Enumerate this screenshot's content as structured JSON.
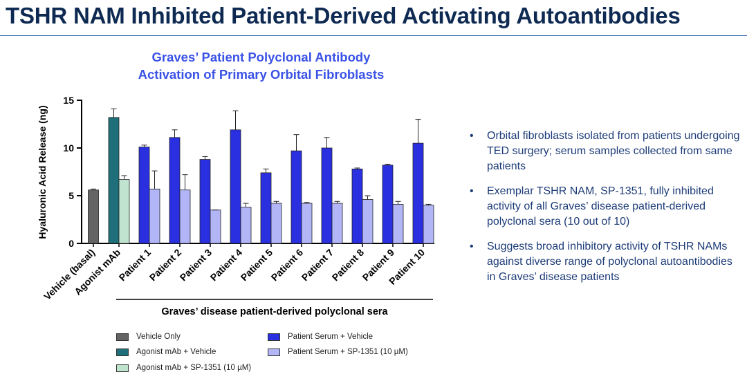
{
  "slide": {
    "title": "TSHR NAM Inhibited Patient-Derived Activating Autoantibodies"
  },
  "chart_data": {
    "type": "bar",
    "title_lines": [
      "Graves’ Patient Polyclonal Antibody",
      "Activation of Primary Orbital Fibroblasts"
    ],
    "ylabel": "Hyaluronic Acid Release (ng)",
    "xlabel": "Graves’ disease patient-derived polyclonal sera",
    "ylim": [
      0,
      15
    ],
    "yticks": [
      0,
      5,
      10,
      15
    ],
    "groups": [
      {
        "label": "Vehicle (basal)",
        "bars": [
          {
            "series": "Vehicle Only",
            "value": 5.6,
            "err": 0.1
          }
        ]
      },
      {
        "label": "Agonist mAb",
        "bars": [
          {
            "series": "Agonist mAb + Vehicle",
            "value": 13.2,
            "err": 0.9
          },
          {
            "series": "Agonist mAb + SP-1351 (10 µM)",
            "value": 6.7,
            "err": 0.4
          }
        ]
      },
      {
        "label": "Patient 1",
        "bars": [
          {
            "series": "Patient Serum + Vehicle",
            "value": 10.1,
            "err": 0.2
          },
          {
            "series": "Patient Serum + SP-1351 (10 µM)",
            "value": 5.7,
            "err": 1.9
          }
        ]
      },
      {
        "label": "Patient 2",
        "bars": [
          {
            "series": "Patient Serum + Vehicle",
            "value": 11.1,
            "err": 0.8
          },
          {
            "series": "Patient Serum + SP-1351 (10 µM)",
            "value": 5.6,
            "err": 1.6
          }
        ]
      },
      {
        "label": "Patient 3",
        "bars": [
          {
            "series": "Patient Serum + Vehicle",
            "value": 8.8,
            "err": 0.3
          },
          {
            "series": "Patient Serum + SP-1351 (10 µM)",
            "value": 3.5,
            "err": 0.0
          }
        ]
      },
      {
        "label": "Patient 4",
        "bars": [
          {
            "series": "Patient Serum + Vehicle",
            "value": 11.9,
            "err": 2.0
          },
          {
            "series": "Patient Serum + SP-1351 (10 µM)",
            "value": 3.8,
            "err": 0.4
          }
        ]
      },
      {
        "label": "Patient 5",
        "bars": [
          {
            "series": "Patient Serum + Vehicle",
            "value": 7.4,
            "err": 0.4
          },
          {
            "series": "Patient Serum + SP-1351 (10 µM)",
            "value": 4.2,
            "err": 0.2
          }
        ]
      },
      {
        "label": "Patient 6",
        "bars": [
          {
            "series": "Patient Serum + Vehicle",
            "value": 9.7,
            "err": 1.7
          },
          {
            "series": "Patient Serum + SP-1351 (10 µM)",
            "value": 4.2,
            "err": 0.1
          }
        ]
      },
      {
        "label": "Patient 7",
        "bars": [
          {
            "series": "Patient Serum + Vehicle",
            "value": 10.0,
            "err": 1.1
          },
          {
            "series": "Patient Serum + SP-1351 (10 µM)",
            "value": 4.2,
            "err": 0.2
          }
        ]
      },
      {
        "label": "Patient 8",
        "bars": [
          {
            "series": "Patient Serum + Vehicle",
            "value": 7.8,
            "err": 0.1
          },
          {
            "series": "Patient Serum + SP-1351 (10 µM)",
            "value": 4.6,
            "err": 0.4
          }
        ]
      },
      {
        "label": "Patient 9",
        "bars": [
          {
            "series": "Patient Serum + Vehicle",
            "value": 8.2,
            "err": 0.1
          },
          {
            "series": "Patient Serum + SP-1351 (10 µM)",
            "value": 4.1,
            "err": 0.3
          }
        ]
      },
      {
        "label": "Patient 10",
        "bars": [
          {
            "series": "Patient Serum + Vehicle",
            "value": 10.5,
            "err": 2.5
          },
          {
            "series": "Patient Serum + SP-1351 (10 µM)",
            "value": 4.0,
            "err": 0.1
          }
        ]
      }
    ],
    "series": [
      {
        "name": "Vehicle Only",
        "color": "#646464"
      },
      {
        "name": "Agonist mAb + Vehicle",
        "color": "#1f6f7a"
      },
      {
        "name": "Agonist mAb + SP-1351 (10 µM)",
        "color": "#bfe3cf"
      },
      {
        "name": "Patient Serum + Vehicle",
        "color": "#2a2fe0"
      },
      {
        "name": "Patient Serum + SP-1351 (10 µM)",
        "color": "#b2b6f7"
      }
    ]
  },
  "bullets": [
    "Orbital fibroblasts isolated from patients undergoing TED surgery; serum samples collected from same patients",
    "Exemplar TSHR NAM, SP-1351, fully inhibited activity of all Graves’ disease patient-derived polyclonal sera (10 out of 10)",
    "Suggests broad inhibitory activity of TSHR NAMs against diverse range of polyclonal autoantibodies in Graves’ disease patients"
  ],
  "bullet_marker": "•"
}
